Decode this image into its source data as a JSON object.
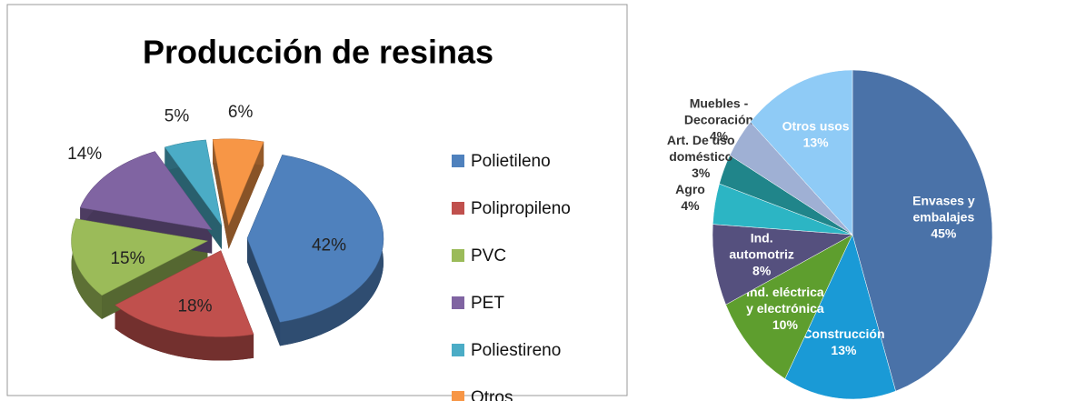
{
  "chart_data": [
    {
      "type": "pie3d",
      "title": "Producción de resinas",
      "categories": [
        "Polietileno",
        "Polipropileno",
        "PVC",
        "PET",
        "Poliestireno",
        "Otros"
      ],
      "values": [
        42,
        18,
        15,
        14,
        5,
        6
      ],
      "value_labels": [
        "42%",
        "18%",
        "15%",
        "14%",
        "5%",
        "6%"
      ],
      "colors": [
        "#4f81bd",
        "#c0504d",
        "#9bbb59",
        "#8064a2",
        "#4bacc6",
        "#f79646"
      ],
      "legend": "right"
    },
    {
      "type": "pie",
      "categories": [
        [
          "Envases y",
          "embalajes"
        ],
        [
          "Construcción"
        ],
        [
          "Ind. eléctrica",
          "y electrónica"
        ],
        [
          "Ind.",
          "automotriz"
        ],
        [
          "Agro"
        ],
        [
          "Art. De uso",
          "doméstico"
        ],
        [
          "Muebles -",
          "Decoración"
        ],
        [
          "Otros usos"
        ]
      ],
      "values": [
        45,
        13,
        10,
        8,
        4,
        3,
        4,
        13
      ],
      "value_labels": [
        "45%",
        "13%",
        "10%",
        "8%",
        "4%",
        "3%",
        "4%",
        "13%"
      ],
      "colors": [
        "#4a72a8",
        "#1a9ad6",
        "#5e9e2e",
        "#55507e",
        "#2cb5c4",
        "#20858a",
        "#9fb0d4",
        "#8fcbf6"
      ]
    }
  ]
}
